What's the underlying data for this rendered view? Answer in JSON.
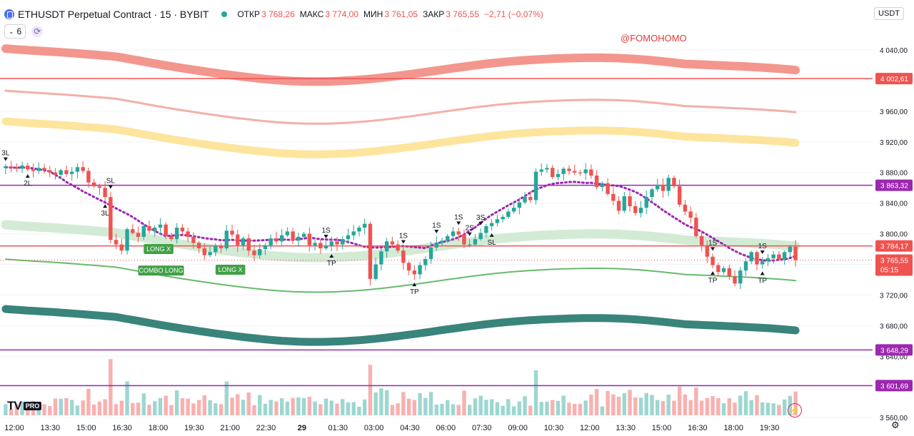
{
  "header": {
    "title": "ETHUSDT Perpetual Contract · 15 · BYBIT",
    "open_label": "ОТКР",
    "open_value": "3 768,26",
    "high_label": "МАКС",
    "high_value": "3 774,00",
    "low_label": "МИН",
    "low_value": "3 761,05",
    "close_label": "ЗАКР",
    "close_value": "3 765,55",
    "change": "−2,71 (−0,07%)"
  },
  "indicators_count": "6",
  "currency": "USDT",
  "watermark": "@FOMOHOMO",
  "logo_pro": "PRO",
  "colors": {
    "up": "#26a69a",
    "down": "#ef5350",
    "resistance": "#ef5350",
    "support": "#9c27b0",
    "price": "#ef5350"
  },
  "chart_data": {
    "type": "candlestick",
    "x_ticks": [
      "12:00",
      "13:30",
      "15:00",
      "16:30",
      "18:00",
      "19:30",
      "21:00",
      "22:30",
      "29",
      "01:30",
      "03:00",
      "04:30",
      "06:00",
      "07:30",
      "09:00",
      "10:30",
      "12:00",
      "13:30",
      "15:00",
      "16:30",
      "18:00",
      "19:30"
    ],
    "y_ticks": [
      "4 040,00",
      "4 000,00",
      "3 960,00",
      "3 920,00",
      "3 880,00",
      "3 840,00",
      "3 800,00",
      "3 760,00",
      "3 720,00",
      "3 680,00",
      "3 640,00",
      "3 600,00",
      "3 560,00"
    ],
    "ylim": [
      3548,
      4068
    ],
    "close_sequence": [
      3888,
      3886,
      3885,
      3889,
      3884,
      3882,
      3886,
      3883,
      3880,
      3877,
      3883,
      3878,
      3881,
      3887,
      3882,
      3867,
      3862,
      3860,
      3848,
      3792,
      3786,
      3778,
      3806,
      3801,
      3796,
      3810,
      3804,
      3808,
      3812,
      3797,
      3793,
      3808,
      3803,
      3796,
      3788,
      3781,
      3772,
      3776,
      3784,
      3781,
      3804,
      3799,
      3785,
      3794,
      3778,
      3772,
      3780,
      3785,
      3794,
      3790,
      3798,
      3803,
      3791,
      3796,
      3800,
      3785,
      3788,
      3781,
      3784,
      3790,
      3786,
      3793,
      3798,
      3803,
      3808,
      3813,
      3741,
      3760,
      3777,
      3790,
      3786,
      3778,
      3762,
      3752,
      3747,
      3759,
      3767,
      3782,
      3788,
      3791,
      3797,
      3803,
      3799,
      3786,
      3786,
      3793,
      3801,
      3810,
      3814,
      3819,
      3822,
      3829,
      3834,
      3841,
      3848,
      3844,
      3881,
      3884,
      3886,
      3874,
      3878,
      3885,
      3882,
      3880,
      3879,
      3884,
      3876,
      3861,
      3866,
      3852,
      3843,
      3830,
      3849,
      3836,
      3827,
      3834,
      3848,
      3858,
      3864,
      3856,
      3873,
      3862,
      3838,
      3829,
      3821,
      3797,
      3785,
      3770,
      3759,
      3750,
      3755,
      3744,
      3735,
      3752,
      3764,
      3776,
      3760,
      3764,
      3768,
      3773,
      3767,
      3776,
      3783,
      3765.55
    ],
    "horizontal_levels": [
      {
        "label": "4 002,61",
        "value": 4002.61,
        "kind": "resistance"
      },
      {
        "label": "3 863,32",
        "value": 3863.32,
        "kind": "support"
      },
      {
        "label": "3 784,17",
        "value": 3784.17,
        "kind": "resistance"
      },
      {
        "label": "3 648,29",
        "value": 3648.29,
        "kind": "support"
      },
      {
        "label": "3 601,69",
        "value": 3601.69,
        "kind": "support"
      }
    ],
    "last_price": {
      "label": "3 765,55",
      "value": 3765.55,
      "countdown": "05:15"
    },
    "annotations": [
      {
        "text": "3L",
        "bar": 0,
        "below": false
      },
      {
        "text": "2L",
        "bar": 4,
        "below": true
      },
      {
        "text": "SL",
        "bar": 19,
        "below": false
      },
      {
        "text": "3L",
        "bar": 18,
        "below": true
      },
      {
        "text": "1S",
        "bar": 58,
        "below": false
      },
      {
        "text": "TP",
        "bar": 59,
        "below": true
      },
      {
        "text": "1S",
        "bar": 72,
        "below": false
      },
      {
        "text": "TP",
        "bar": 74,
        "below": true
      },
      {
        "text": "1S",
        "bar": 78,
        "below": false
      },
      {
        "text": "1S",
        "bar": 82,
        "below": false
      },
      {
        "text": "2S",
        "bar": 84,
        "below": false
      },
      {
        "text": "3S",
        "bar": 86,
        "below": false
      },
      {
        "text": "SL",
        "bar": 88,
        "below": true
      },
      {
        "text": "1S",
        "bar": 128,
        "below": false
      },
      {
        "text": "TP",
        "bar": 128,
        "below": true
      },
      {
        "text": "1S",
        "bar": 137,
        "below": false
      },
      {
        "text": "TP",
        "bar": 137,
        "below": true
      }
    ],
    "signal_boxes": [
      {
        "text": "LONG X",
        "bar": 25,
        "value": 3780
      },
      {
        "text": "COMBO LONG",
        "bar": 24,
        "value": 3752
      },
      {
        "text": "LONG X",
        "bar": 38,
        "value": 3753
      }
    ]
  }
}
